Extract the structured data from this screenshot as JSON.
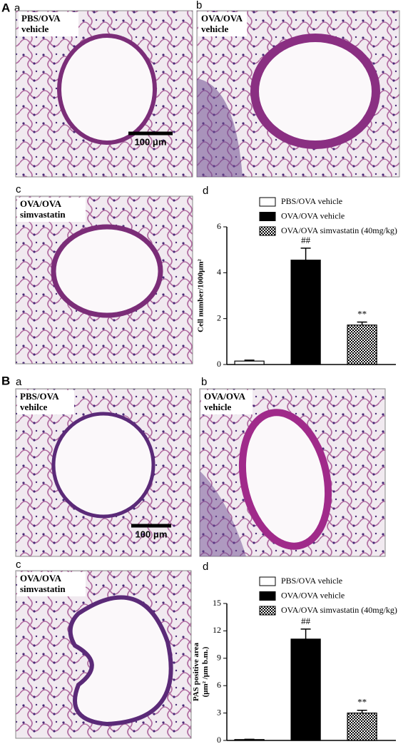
{
  "figure": {
    "sections": [
      {
        "letter": "A",
        "panels": [
          {
            "letter": "a",
            "label": [
              "PBS/OVA",
              "vehicle"
            ],
            "scale_bar": "100 μm"
          },
          {
            "letter": "b",
            "label": [
              "OVA/OVA",
              "vehicle"
            ]
          },
          {
            "letter": "c",
            "label": [
              "OVA/OVA",
              "simvastatin"
            ]
          },
          {
            "letter": "d"
          }
        ]
      },
      {
        "letter": "B",
        "panels": [
          {
            "letter": "a",
            "label": [
              "PBS/OVA",
              "vehilce"
            ],
            "scale_bar": "100 μm"
          },
          {
            "letter": "b",
            "label": [
              "OVA/OVA",
              "vehicle"
            ]
          },
          {
            "letter": "c",
            "label": [
              "OVA/OVA",
              "simvastatin"
            ]
          },
          {
            "letter": "d"
          }
        ]
      }
    ]
  },
  "chart_data": [
    {
      "type": "bar",
      "y_label": "Cell number/1000μm²",
      "categories": [
        "PBS/OVA vehicle",
        "OVA/OVA vehicle",
        "OVA/OVA simvastatin (40mg/kg)"
      ],
      "values": [
        0.15,
        4.55,
        1.72
      ],
      "errors": [
        0.04,
        0.52,
        0.13
      ],
      "colors": [
        "#ffffff",
        "#000000",
        "#ffffff"
      ],
      "patterns": [
        "solid",
        "solid",
        "checker"
      ],
      "annotations": [
        null,
        "##",
        "**"
      ],
      "ylim": [
        0,
        6
      ],
      "yticks": [
        0,
        2,
        4,
        6
      ]
    },
    {
      "type": "bar",
      "y_label": [
        "PAS positive area",
        "(μm² /μm b.m.)"
      ],
      "categories": [
        "PBS/OVA vehicle",
        "OVA/OVA vehicle",
        "OVA/OVA simvastatin (40mg/kg)"
      ],
      "values": [
        0.1,
        11.1,
        3.0
      ],
      "errors": [
        0.03,
        1.1,
        0.3
      ],
      "colors": [
        "#ffffff",
        "#000000",
        "#ffffff"
      ],
      "patterns": [
        "solid",
        "solid",
        "checker"
      ],
      "annotations": [
        null,
        "##",
        "**"
      ],
      "ylim": [
        0,
        15
      ],
      "yticks": [
        0,
        3,
        6,
        9,
        12,
        15
      ]
    }
  ]
}
